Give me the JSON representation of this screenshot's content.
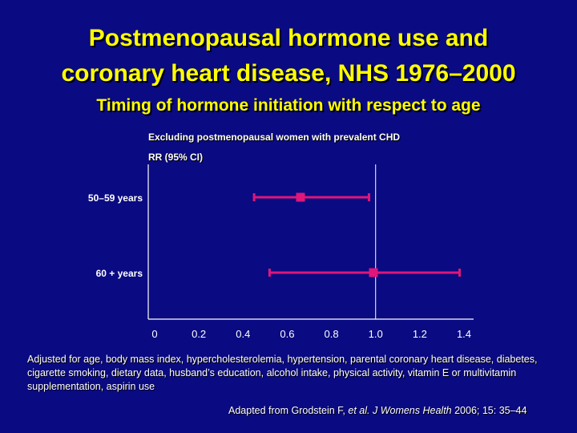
{
  "title_line1": "Postmenopausal hormone use and",
  "title_line2": "coronary heart disease, NHS 1976–2000",
  "subtitle": "Timing of hormone initiation with respect to age",
  "note": "Excluding postmenopausal women with prevalent CHD",
  "source": {
    "prefix": "Adapted from Grodstein F, ",
    "etal": "et al.",
    "journal": " J Womens Health",
    "suffix": " 2006; 15: 35–44"
  },
  "footnote": "Adjusted for age, body mass index, hypercholesterolemia, hypertension, parental coronary heart disease, diabetes, cigarette smoking, dietary data, husband’s education, alcohol intake, physical activity, vitamin E or multivitamin supplementation, aspirin use",
  "colors": {
    "background": "#0a0a82",
    "title": "#ffff00",
    "marker": "#e0167a",
    "axis": "#ffffff"
  },
  "chart_data": {
    "type": "forest",
    "ylabel": "RR (95% CI)",
    "x_ticks": [
      "0",
      "0.2",
      "0.4",
      "0.6",
      "0.8",
      "1.0",
      "1.2",
      "1.4"
    ],
    "xlim": [
      0,
      1.4
    ],
    "reference_line": 1.0,
    "rows": [
      {
        "label": "50–59 years",
        "rr": 0.66,
        "ci_low": 0.45,
        "ci_high": 0.97
      },
      {
        "label": "60 + years",
        "rr": 0.99,
        "ci_low": 0.52,
        "ci_high": 1.38
      }
    ]
  }
}
